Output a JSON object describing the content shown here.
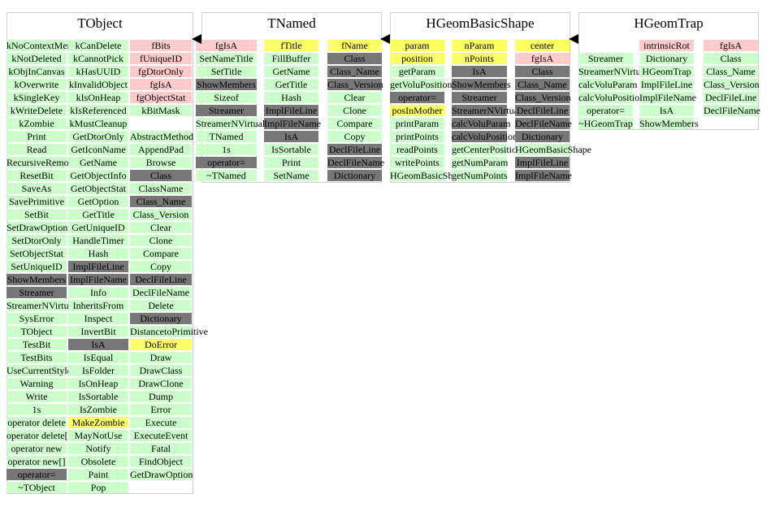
{
  "colors": {
    "method": "#ccffcc",
    "data": "#ffcccc",
    "dataptr": "#ffff66",
    "inherited": "#777777"
  },
  "classes": [
    {
      "name": "TObject",
      "columns": [
        [
          [
            "kNoContextMenu",
            "method"
          ],
          [
            "kNotDeleted",
            "method"
          ],
          [
            "kObjInCanvas",
            "method"
          ],
          [
            "kOverwrite",
            "method"
          ],
          [
            "kSingleKey",
            "method"
          ],
          [
            "kWriteDelete",
            "method"
          ],
          [
            "kZombie",
            "method"
          ],
          [
            "Print",
            "method"
          ],
          [
            "Read",
            "method"
          ],
          [
            "RecursiveRemove",
            "method"
          ],
          [
            "ResetBit",
            "method"
          ],
          [
            "SaveAs",
            "method"
          ],
          [
            "SavePrimitive",
            "method"
          ],
          [
            "SetBit",
            "method"
          ],
          [
            "SetDrawOption",
            "method"
          ],
          [
            "SetDtorOnly",
            "method"
          ],
          [
            "SetObjectStat",
            "method"
          ],
          [
            "SetUniqueID",
            "method"
          ],
          [
            "ShowMembers",
            "inherited"
          ],
          [
            "Streamer",
            "inherited"
          ],
          [
            "StreamerNVirtual",
            "method"
          ],
          [
            "SysError",
            "method"
          ],
          [
            "TObject",
            "method"
          ],
          [
            "TestBit",
            "method"
          ],
          [
            "TestBits",
            "method"
          ],
          [
            "UseCurrentStyle",
            "method"
          ],
          [
            "Warning",
            "method"
          ],
          [
            "Write",
            "method"
          ],
          [
            "1s",
            "method"
          ],
          [
            "operator delete",
            "method"
          ],
          [
            "operator delete[]",
            "method"
          ],
          [
            "operator new",
            "method"
          ],
          [
            "operator new[]",
            "method"
          ],
          [
            "operator=",
            "inherited"
          ],
          [
            "~TObject",
            "method"
          ]
        ],
        [
          [
            "kCanDelete",
            "method"
          ],
          [
            "kCannotPick",
            "method"
          ],
          [
            "kHasUUID",
            "method"
          ],
          [
            "kInvalidObject",
            "method"
          ],
          [
            "kIsOnHeap",
            "method"
          ],
          [
            "kIsReferenced",
            "method"
          ],
          [
            "kMustCleanup",
            "method"
          ],
          [
            "GetDtorOnly",
            "method"
          ],
          [
            "GetIconName",
            "method"
          ],
          [
            "GetName",
            "method"
          ],
          [
            "GetObjectInfo",
            "method"
          ],
          [
            "GetObjectStat",
            "method"
          ],
          [
            "GetOption",
            "method"
          ],
          [
            "GetTitle",
            "method"
          ],
          [
            "GetUniqueID",
            "method"
          ],
          [
            "HandleTimer",
            "method"
          ],
          [
            "Hash",
            "method"
          ],
          [
            "ImplFileLine",
            "inherited"
          ],
          [
            "ImplFileName",
            "inherited"
          ],
          [
            "Info",
            "method"
          ],
          [
            "InheritsFrom",
            "method"
          ],
          [
            "Inspect",
            "method"
          ],
          [
            "InvertBit",
            "method"
          ],
          [
            "IsA",
            "inherited"
          ],
          [
            "IsEqual",
            "method"
          ],
          [
            "IsFolder",
            "method"
          ],
          [
            "IsOnHeap",
            "method"
          ],
          [
            "IsSortable",
            "method"
          ],
          [
            "IsZombie",
            "method"
          ],
          [
            "MakeZombie",
            "dataptr"
          ],
          [
            "MayNotUse",
            "method"
          ],
          [
            "Notify",
            "method"
          ],
          [
            "Obsolete",
            "method"
          ],
          [
            "Paint",
            "method"
          ],
          [
            "Pop",
            "method"
          ]
        ],
        [
          [
            "fBits",
            "data"
          ],
          [
            "fUniqueID",
            "data"
          ],
          [
            "fgDtorOnly",
            "data"
          ],
          [
            "fgIsA",
            "data"
          ],
          [
            "fgObjectStat",
            "data"
          ],
          [
            "kBitMask",
            "method"
          ],
          [
            "",
            "blank"
          ],
          [
            "AbstractMethod",
            "method"
          ],
          [
            "AppendPad",
            "method"
          ],
          [
            "Browse",
            "method"
          ],
          [
            "Class",
            "inherited"
          ],
          [
            "ClassName",
            "method"
          ],
          [
            "Class_Name",
            "inherited"
          ],
          [
            "Class_Version",
            "method"
          ],
          [
            "Clear",
            "method"
          ],
          [
            "Clone",
            "method"
          ],
          [
            "Compare",
            "method"
          ],
          [
            "Copy",
            "method"
          ],
          [
            "DeclFileLine",
            "inherited"
          ],
          [
            "DeclFileName",
            "method"
          ],
          [
            "Delete",
            "method"
          ],
          [
            "Dictionary",
            "inherited"
          ],
          [
            "DistancetoPrimitive",
            "method"
          ],
          [
            "DoError",
            "dataptr"
          ],
          [
            "Draw",
            "method"
          ],
          [
            "DrawClass",
            "method"
          ],
          [
            "DrawClone",
            "method"
          ],
          [
            "Dump",
            "method"
          ],
          [
            "Error",
            "method"
          ],
          [
            "Execute",
            "method"
          ],
          [
            "ExecuteEvent",
            "method"
          ],
          [
            "Fatal",
            "method"
          ],
          [
            "FindObject",
            "method"
          ],
          [
            "GetDrawOption",
            "method"
          ]
        ]
      ]
    },
    {
      "name": "TNamed",
      "columns": [
        [
          [
            "fgIsA",
            "data"
          ],
          [
            "SetNameTitle",
            "method"
          ],
          [
            "SetTitle",
            "method"
          ],
          [
            "ShowMembers",
            "inherited"
          ],
          [
            "Sizeof",
            "method"
          ],
          [
            "Streamer",
            "inherited"
          ],
          [
            "StreamerNVirtual",
            "method"
          ],
          [
            "TNamed",
            "method"
          ],
          [
            "1s",
            "method"
          ],
          [
            "operator=",
            "inherited"
          ],
          [
            "~TNamed",
            "method"
          ]
        ],
        [
          [
            "fTitle",
            "dataptr"
          ],
          [
            "FillBuffer",
            "method"
          ],
          [
            "GetName",
            "method"
          ],
          [
            "GetTitle",
            "method"
          ],
          [
            "Hash",
            "method"
          ],
          [
            "ImplFileLine",
            "inherited"
          ],
          [
            "ImplFileName",
            "inherited"
          ],
          [
            "IsA",
            "inherited"
          ],
          [
            "IsSortable",
            "method"
          ],
          [
            "Print",
            "method"
          ],
          [
            "SetName",
            "method"
          ]
        ],
        [
          [
            "fName",
            "dataptr"
          ],
          [
            "Class",
            "inherited"
          ],
          [
            "Class_Name",
            "inherited"
          ],
          [
            "Class_Version",
            "inherited"
          ],
          [
            "Clear",
            "method"
          ],
          [
            "Clone",
            "method"
          ],
          [
            "Compare",
            "method"
          ],
          [
            "Copy",
            "method"
          ],
          [
            "DeclFileLine",
            "inherited"
          ],
          [
            "DeclFileName",
            "inherited"
          ],
          [
            "Dictionary",
            "inherited"
          ]
        ]
      ]
    },
    {
      "name": "HGeomBasicShape",
      "columns": [
        [
          [
            "param",
            "dataptr"
          ],
          [
            "position",
            "dataptr"
          ],
          [
            "getParam",
            "method"
          ],
          [
            "getVoluPosition",
            "method"
          ],
          [
            "operator=",
            "inherited"
          ],
          [
            "posInMother",
            "dataptr"
          ],
          [
            "printParam",
            "method"
          ],
          [
            "printPoints",
            "method"
          ],
          [
            "readPoints",
            "method"
          ],
          [
            "writePoints",
            "method"
          ],
          [
            "HGeomBasicShape",
            "method"
          ]
        ],
        [
          [
            "nParam",
            "dataptr"
          ],
          [
            "nPoints",
            "dataptr"
          ],
          [
            "IsA",
            "inherited"
          ],
          [
            "ShowMembers",
            "inherited"
          ],
          [
            "Streamer",
            "inherited"
          ],
          [
            "StreamerNVirtual",
            "inherited"
          ],
          [
            "calcVoluParam",
            "inherited"
          ],
          [
            "calcVoluPosition",
            "inherited"
          ],
          [
            "getCenterPosition",
            "method"
          ],
          [
            "getNumParam",
            "method"
          ],
          [
            "getNumPoints",
            "method"
          ]
        ],
        [
          [
            "center",
            "dataptr"
          ],
          [
            "fgIsA",
            "data"
          ],
          [
            "Class",
            "inherited"
          ],
          [
            "Class_Name",
            "inherited"
          ],
          [
            "Class_Version",
            "inherited"
          ],
          [
            "DeclFileLine",
            "inherited"
          ],
          [
            "DeclFileName",
            "inherited"
          ],
          [
            "Dictionary",
            "inherited"
          ],
          [
            "HGeomBasicShape",
            "method"
          ],
          [
            "ImplFileLine",
            "inherited"
          ],
          [
            "ImplFileName",
            "inherited"
          ]
        ]
      ]
    },
    {
      "name": "HGeomTrap",
      "columns": [
        [
          [
            "",
            "blank"
          ],
          [
            "",
            "blank"
          ],
          [
            "Streamer",
            "method"
          ],
          [
            "StreamerNVirtual",
            "method"
          ],
          [
            "calcVoluParam",
            "method"
          ],
          [
            "calcVoluPosition",
            "method"
          ],
          [
            "operator=",
            "method"
          ],
          [
            "~HGeomTrap",
            "method"
          ]
        ],
        [
          [
            "intrinsicRot",
            "data"
          ],
          [
            "Dictionary",
            "method"
          ],
          [
            "HGeomTrap",
            "method"
          ],
          [
            "ImplFileLine",
            "method"
          ],
          [
            "ImplFileName",
            "method"
          ],
          [
            "IsA",
            "method"
          ],
          [
            "ShowMembers",
            "method"
          ]
        ],
        [
          [
            "fgIsA",
            "data"
          ],
          [
            "Class",
            "method"
          ],
          [
            "Class_Name",
            "method"
          ],
          [
            "Class_Version",
            "method"
          ],
          [
            "DeclFileLine",
            "method"
          ],
          [
            "DeclFileName",
            "method"
          ]
        ]
      ]
    }
  ]
}
